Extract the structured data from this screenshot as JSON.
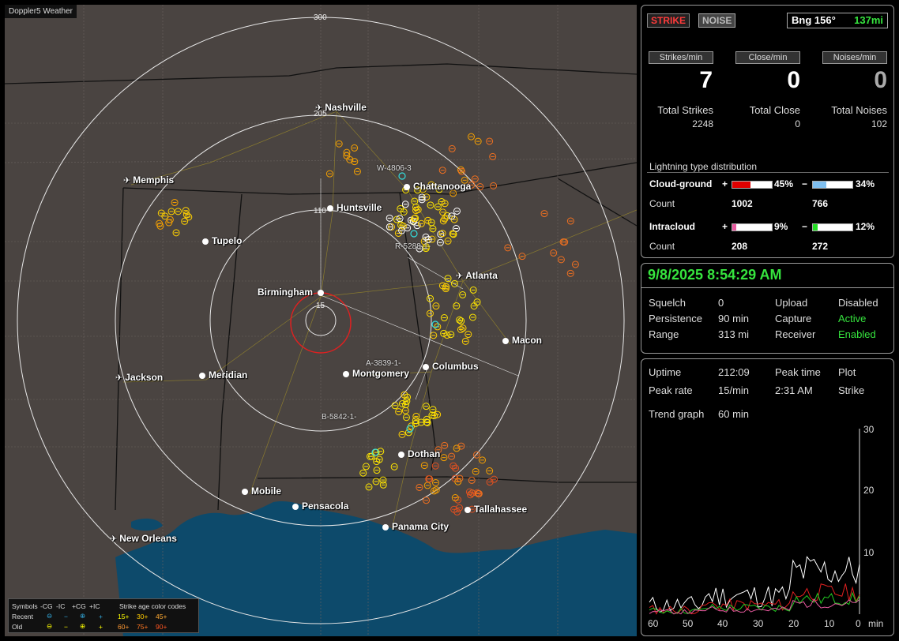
{
  "app": {
    "title": "Doppler5 Weather"
  },
  "map": {
    "ring_labels": [
      "300",
      "205",
      "110",
      "15"
    ],
    "cities": [
      {
        "name": "Nashville",
        "type": "airport"
      },
      {
        "name": "Memphis",
        "type": "airport"
      },
      {
        "name": "Chattanooga",
        "type": "city"
      },
      {
        "name": "Huntsville",
        "type": "city"
      },
      {
        "name": "Tupelo",
        "type": "city"
      },
      {
        "name": "Atlanta",
        "type": "airport"
      },
      {
        "name": "Birmingham",
        "type": "city"
      },
      {
        "name": "Macon",
        "type": "city"
      },
      {
        "name": "Jackson",
        "type": "airport"
      },
      {
        "name": "Meridian",
        "type": "city"
      },
      {
        "name": "Montgomery",
        "type": "city"
      },
      {
        "name": "Columbus",
        "type": "city"
      },
      {
        "name": "Dothan",
        "type": "city"
      },
      {
        "name": "Mobile",
        "type": "city"
      },
      {
        "name": "Pensacola",
        "type": "city"
      },
      {
        "name": "Tallahassee",
        "type": "city"
      },
      {
        "name": "Panama City",
        "type": "city"
      },
      {
        "name": "New Orleans",
        "type": "airport"
      }
    ],
    "sensors": [
      "W-4806-3",
      "R-5288-1-",
      "A-3839-1-",
      "B-5842-1-"
    ],
    "legend": {
      "header": [
        "Symbols",
        "-CG",
        "-IC",
        "+CG",
        "+IC",
        "Strike age color codes"
      ],
      "recent": {
        "label": "Recent",
        "ages": [
          "15+",
          "30+",
          "45+"
        ]
      },
      "old": {
        "label": "Old",
        "ages": [
          "60+",
          "75+",
          "90+"
        ]
      }
    }
  },
  "summary": {
    "strike_btn": "STRIKE",
    "noise_btn": "NOISE",
    "bearing": "Bng 156°",
    "distance": "137mi",
    "strikes_per_min_label": "Strikes/min",
    "close_per_min_label": "Close/min",
    "noises_per_min_label": "Noises/min",
    "strikes_per_min": "7",
    "close_per_min": "0",
    "noises_per_min": "0",
    "total_strikes_label": "Total Strikes",
    "total_close_label": "Total Close",
    "total_noises_label": "Total Noises",
    "total_strikes": "2248",
    "total_close": "0",
    "total_noises": "102"
  },
  "distribution": {
    "title": "Lightning type distribution",
    "cg_label": "Cloud-ground",
    "ic_label": "Intracloud",
    "count_label": "Count",
    "plus": "+",
    "minus": "−",
    "cg_plus_pct": "45%",
    "cg_minus_pct": "34%",
    "ic_plus_pct": "9%",
    "ic_minus_pct": "12%",
    "cg_plus_frac": 0.45,
    "cg_minus_frac": 0.34,
    "ic_plus_frac": 0.09,
    "ic_minus_frac": 0.12,
    "cg_plus_count": "1002",
    "cg_minus_count": "766",
    "ic_plus_count": "208",
    "ic_minus_count": "272",
    "colors": {
      "cg_plus": "#e00000",
      "cg_minus": "#7fbfef",
      "ic_plus": "#e85aa0",
      "ic_minus": "#22dd22"
    }
  },
  "status": {
    "datetime": "9/8/2025 8:54:29 AM",
    "squelch_label": "Squelch",
    "squelch": "0",
    "persistence_label": "Persistence",
    "persistence": "90 min",
    "range_label": "Range",
    "range": "313 mi",
    "upload_label": "Upload",
    "upload": "Disabled",
    "capture_label": "Capture",
    "capture": "Active",
    "receiver_label": "Receiver",
    "receiver": "Enabled"
  },
  "trend": {
    "uptime_label": "Uptime",
    "uptime": "212:09",
    "peak_time_label": "Peak time",
    "peak_time": "2:31 AM",
    "plot_label": "Plot",
    "plot": "Strike",
    "peak_rate_label": "Peak rate",
    "peak_rate": "15/min",
    "trend_graph_label": "Trend graph",
    "trend_graph": "60 min",
    "y_ticks": [
      "30",
      "20",
      "10"
    ],
    "x_ticks": [
      "60",
      "50",
      "40",
      "30",
      "20",
      "10",
      "0"
    ],
    "x_unit": "min"
  }
}
